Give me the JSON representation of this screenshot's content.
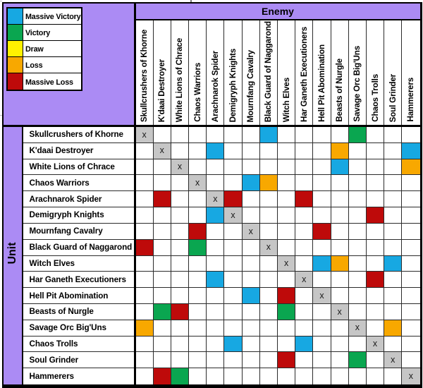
{
  "colors": {
    "sheet_background": "#FFFFFF",
    "chart_background": "#AB8BF4",
    "border": "#000000",
    "grid_line": "#2B2B2B",
    "cell_background": "#FFFFFF",
    "diagonal_background": "#C6C6C6",
    "massive_victory": "#17A8E2",
    "victory": "#0AA650",
    "draw": "#FFF100",
    "loss": "#F8A800",
    "massive_loss": "#BE0A0A"
  },
  "chart_data": {
    "type": "heatmap",
    "column_axis_label": "Enemy",
    "row_axis_label": "Unit",
    "legend_position": "top-left",
    "legend": [
      {
        "code": "MV",
        "label": "Massive Victory",
        "color_key": "massive_victory"
      },
      {
        "code": "V",
        "label": "Victory",
        "color_key": "victory"
      },
      {
        "code": "D",
        "label": "Draw",
        "color_key": "draw"
      },
      {
        "code": "L",
        "label": "Loss",
        "color_key": "loss"
      },
      {
        "code": "ML",
        "label": "Massive Loss",
        "color_key": "massive_loss"
      }
    ],
    "diagonal_marker": "x",
    "units": [
      "Skullcrushers of Khorne",
      "K'daai Destroyer",
      "White Lions of Chrace",
      "Chaos Warriors",
      "Arachnarok Spider",
      "Demigryph Knights",
      "Mournfang Cavalry",
      "Black Guard of Naggarond",
      "Witch Elves",
      "Har Ganeth Executioners",
      "Hell Pit Abomination",
      "Beasts of Nurgle",
      "Savage Orc Big'Uns",
      "Chaos Trolls",
      "Soul Grinder",
      "Hammerers"
    ],
    "matrix": [
      [
        "x",
        "",
        "",
        "",
        "",
        "",
        "",
        "MV",
        "",
        "",
        "",
        "",
        "V",
        "",
        "",
        ""
      ],
      [
        "",
        "x",
        "",
        "",
        "MV",
        "",
        "",
        "",
        "",
        "",
        "",
        "L",
        "",
        "",
        "",
        "MV"
      ],
      [
        "",
        "",
        "x",
        "",
        "",
        "",
        "",
        "",
        "",
        "",
        "",
        "MV",
        "",
        "",
        "",
        "L"
      ],
      [
        "",
        "",
        "",
        "x",
        "",
        "",
        "MV",
        "L",
        "",
        "",
        "",
        "",
        "",
        "",
        "",
        ""
      ],
      [
        "",
        "ML",
        "",
        "",
        "x",
        "ML",
        "",
        "",
        "",
        "ML",
        "",
        "",
        "",
        "",
        "",
        ""
      ],
      [
        "",
        "",
        "",
        "",
        "MV",
        "x",
        "",
        "",
        "",
        "",
        "",
        "",
        "",
        "ML",
        "",
        ""
      ],
      [
        "",
        "",
        "",
        "ML",
        "",
        "",
        "x",
        "",
        "",
        "",
        "ML",
        "",
        "",
        "",
        "",
        ""
      ],
      [
        "ML",
        "",
        "",
        "V",
        "",
        "",
        "",
        "x",
        "",
        "",
        "",
        "",
        "",
        "",
        "",
        ""
      ],
      [
        "",
        "",
        "",
        "",
        "",
        "",
        "",
        "",
        "x",
        "",
        "MV",
        "L",
        "",
        "",
        "MV",
        ""
      ],
      [
        "",
        "",
        "",
        "",
        "MV",
        "",
        "",
        "",
        "",
        "x",
        "",
        "",
        "",
        "ML",
        "",
        ""
      ],
      [
        "",
        "",
        "",
        "",
        "",
        "",
        "MV",
        "",
        "ML",
        "",
        "x",
        "",
        "",
        "",
        "",
        ""
      ],
      [
        "",
        "V",
        "ML",
        "",
        "",
        "",
        "",
        "",
        "V",
        "",
        "",
        "x",
        "",
        "",
        "",
        ""
      ],
      [
        "L",
        "",
        "",
        "",
        "",
        "",
        "",
        "",
        "",
        "",
        "",
        "",
        "x",
        "",
        "L",
        ""
      ],
      [
        "",
        "",
        "",
        "",
        "",
        "MV",
        "",
        "",
        "",
        "MV",
        "",
        "",
        "",
        "x",
        "",
        ""
      ],
      [
        "",
        "",
        "",
        "",
        "",
        "",
        "",
        "",
        "ML",
        "",
        "",
        "",
        "V",
        "",
        "x",
        ""
      ],
      [
        "",
        "ML",
        "V",
        "",
        "",
        "",
        "",
        "",
        "",
        "",
        "",
        "",
        "",
        "",
        "",
        "x"
      ]
    ]
  }
}
